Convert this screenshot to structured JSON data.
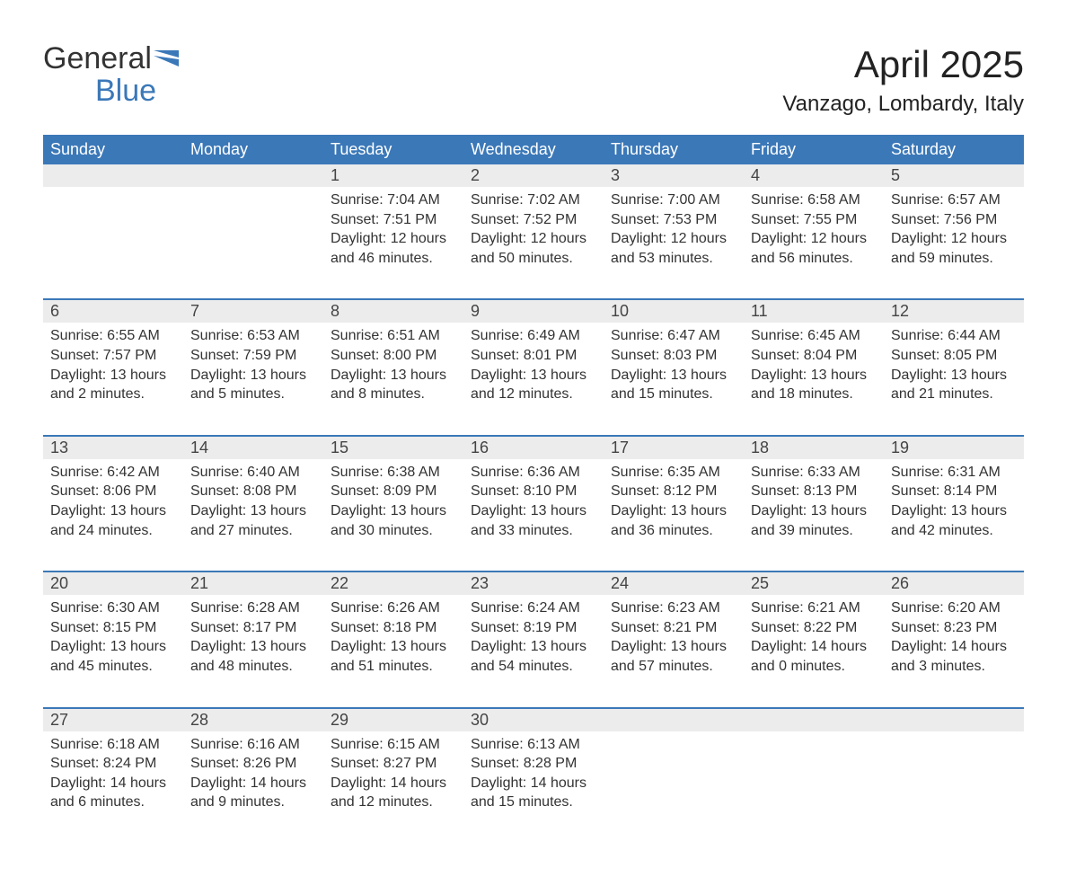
{
  "logo": {
    "text1": "General",
    "text2": "Blue"
  },
  "title": "April 2025",
  "location": "Vanzago, Lombardy, Italy",
  "colors": {
    "header_bg": "#3b78b8",
    "header_text": "#ffffff",
    "daynum_bg": "#ececec",
    "daynum_border": "#3b78b8",
    "body_text": "#333333",
    "background": "#ffffff"
  },
  "layout": {
    "columns": 7,
    "rows": 5,
    "font_family": "Segoe UI",
    "title_fontsize_pt": 32,
    "location_fontsize_pt": 18,
    "header_fontsize_pt": 14,
    "cell_fontsize_pt": 12
  },
  "weekdays": [
    "Sunday",
    "Monday",
    "Tuesday",
    "Wednesday",
    "Thursday",
    "Friday",
    "Saturday"
  ],
  "weeks": [
    [
      null,
      null,
      {
        "n": "1",
        "sunrise": "7:04 AM",
        "sunset": "7:51 PM",
        "dl1": "Daylight: 12 hours",
        "dl2": "and 46 minutes."
      },
      {
        "n": "2",
        "sunrise": "7:02 AM",
        "sunset": "7:52 PM",
        "dl1": "Daylight: 12 hours",
        "dl2": "and 50 minutes."
      },
      {
        "n": "3",
        "sunrise": "7:00 AM",
        "sunset": "7:53 PM",
        "dl1": "Daylight: 12 hours",
        "dl2": "and 53 minutes."
      },
      {
        "n": "4",
        "sunrise": "6:58 AM",
        "sunset": "7:55 PM",
        "dl1": "Daylight: 12 hours",
        "dl2": "and 56 minutes."
      },
      {
        "n": "5",
        "sunrise": "6:57 AM",
        "sunset": "7:56 PM",
        "dl1": "Daylight: 12 hours",
        "dl2": "and 59 minutes."
      }
    ],
    [
      {
        "n": "6",
        "sunrise": "6:55 AM",
        "sunset": "7:57 PM",
        "dl1": "Daylight: 13 hours",
        "dl2": "and 2 minutes."
      },
      {
        "n": "7",
        "sunrise": "6:53 AM",
        "sunset": "7:59 PM",
        "dl1": "Daylight: 13 hours",
        "dl2": "and 5 minutes."
      },
      {
        "n": "8",
        "sunrise": "6:51 AM",
        "sunset": "8:00 PM",
        "dl1": "Daylight: 13 hours",
        "dl2": "and 8 minutes."
      },
      {
        "n": "9",
        "sunrise": "6:49 AM",
        "sunset": "8:01 PM",
        "dl1": "Daylight: 13 hours",
        "dl2": "and 12 minutes."
      },
      {
        "n": "10",
        "sunrise": "6:47 AM",
        "sunset": "8:03 PM",
        "dl1": "Daylight: 13 hours",
        "dl2": "and 15 minutes."
      },
      {
        "n": "11",
        "sunrise": "6:45 AM",
        "sunset": "8:04 PM",
        "dl1": "Daylight: 13 hours",
        "dl2": "and 18 minutes."
      },
      {
        "n": "12",
        "sunrise": "6:44 AM",
        "sunset": "8:05 PM",
        "dl1": "Daylight: 13 hours",
        "dl2": "and 21 minutes."
      }
    ],
    [
      {
        "n": "13",
        "sunrise": "6:42 AM",
        "sunset": "8:06 PM",
        "dl1": "Daylight: 13 hours",
        "dl2": "and 24 minutes."
      },
      {
        "n": "14",
        "sunrise": "6:40 AM",
        "sunset": "8:08 PM",
        "dl1": "Daylight: 13 hours",
        "dl2": "and 27 minutes."
      },
      {
        "n": "15",
        "sunrise": "6:38 AM",
        "sunset": "8:09 PM",
        "dl1": "Daylight: 13 hours",
        "dl2": "and 30 minutes."
      },
      {
        "n": "16",
        "sunrise": "6:36 AM",
        "sunset": "8:10 PM",
        "dl1": "Daylight: 13 hours",
        "dl2": "and 33 minutes."
      },
      {
        "n": "17",
        "sunrise": "6:35 AM",
        "sunset": "8:12 PM",
        "dl1": "Daylight: 13 hours",
        "dl2": "and 36 minutes."
      },
      {
        "n": "18",
        "sunrise": "6:33 AM",
        "sunset": "8:13 PM",
        "dl1": "Daylight: 13 hours",
        "dl2": "and 39 minutes."
      },
      {
        "n": "19",
        "sunrise": "6:31 AM",
        "sunset": "8:14 PM",
        "dl1": "Daylight: 13 hours",
        "dl2": "and 42 minutes."
      }
    ],
    [
      {
        "n": "20",
        "sunrise": "6:30 AM",
        "sunset": "8:15 PM",
        "dl1": "Daylight: 13 hours",
        "dl2": "and 45 minutes."
      },
      {
        "n": "21",
        "sunrise": "6:28 AM",
        "sunset": "8:17 PM",
        "dl1": "Daylight: 13 hours",
        "dl2": "and 48 minutes."
      },
      {
        "n": "22",
        "sunrise": "6:26 AM",
        "sunset": "8:18 PM",
        "dl1": "Daylight: 13 hours",
        "dl2": "and 51 minutes."
      },
      {
        "n": "23",
        "sunrise": "6:24 AM",
        "sunset": "8:19 PM",
        "dl1": "Daylight: 13 hours",
        "dl2": "and 54 minutes."
      },
      {
        "n": "24",
        "sunrise": "6:23 AM",
        "sunset": "8:21 PM",
        "dl1": "Daylight: 13 hours",
        "dl2": "and 57 minutes."
      },
      {
        "n": "25",
        "sunrise": "6:21 AM",
        "sunset": "8:22 PM",
        "dl1": "Daylight: 14 hours",
        "dl2": "and 0 minutes."
      },
      {
        "n": "26",
        "sunrise": "6:20 AM",
        "sunset": "8:23 PM",
        "dl1": "Daylight: 14 hours",
        "dl2": "and 3 minutes."
      }
    ],
    [
      {
        "n": "27",
        "sunrise": "6:18 AM",
        "sunset": "8:24 PM",
        "dl1": "Daylight: 14 hours",
        "dl2": "and 6 minutes."
      },
      {
        "n": "28",
        "sunrise": "6:16 AM",
        "sunset": "8:26 PM",
        "dl1": "Daylight: 14 hours",
        "dl2": "and 9 minutes."
      },
      {
        "n": "29",
        "sunrise": "6:15 AM",
        "sunset": "8:27 PM",
        "dl1": "Daylight: 14 hours",
        "dl2": "and 12 minutes."
      },
      {
        "n": "30",
        "sunrise": "6:13 AM",
        "sunset": "8:28 PM",
        "dl1": "Daylight: 14 hours",
        "dl2": "and 15 minutes."
      },
      null,
      null,
      null
    ]
  ],
  "labels": {
    "sunrise": "Sunrise: ",
    "sunset": "Sunset: "
  }
}
